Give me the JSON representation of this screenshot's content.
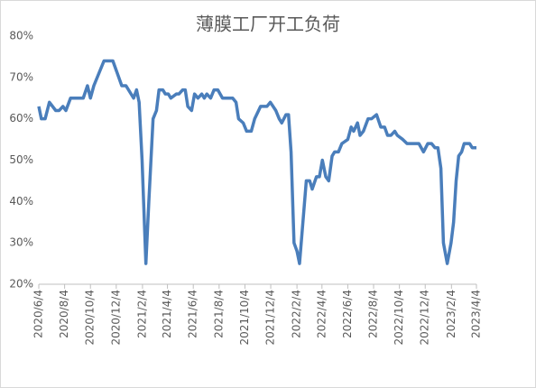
{
  "chart_data": {
    "type": "line",
    "title": "薄膜工厂开工负荷",
    "color": "#4a7ebb",
    "x": [
      "2020-06-04",
      "2020-06-10",
      "2020-06-19",
      "2020-06-29",
      "2020-07-14",
      "2020-07-22",
      "2020-07-31",
      "2020-08-07",
      "2020-08-18",
      "2020-09-17",
      "2020-09-27",
      "2020-10-04",
      "2020-10-12",
      "2020-11-05",
      "2020-11-26",
      "2020-12-17",
      "2020-12-27",
      "2021-01-14",
      "2021-01-21",
      "2021-01-27",
      "2021-02-03",
      "2021-02-12",
      "2021-02-19",
      "2021-03-01",
      "2021-03-09",
      "2021-03-15",
      "2021-03-24",
      "2021-03-30",
      "2021-04-06",
      "2021-04-12",
      "2021-04-25",
      "2021-05-01",
      "2021-05-10",
      "2021-05-16",
      "2021-05-22",
      "2021-05-31",
      "2021-06-07",
      "2021-06-15",
      "2021-06-24",
      "2021-06-30",
      "2021-07-06",
      "2021-07-15",
      "2021-07-23",
      "2021-08-01",
      "2021-08-12",
      "2021-09-05",
      "2021-09-13",
      "2021-09-19",
      "2021-09-30",
      "2021-10-08",
      "2021-10-19",
      "2021-10-27",
      "2021-11-10",
      "2021-11-25",
      "2021-12-03",
      "2021-12-16",
      "2021-12-24",
      "2021-12-30",
      "2022-01-09",
      "2022-01-15",
      "2022-01-21",
      "2022-01-28",
      "2022-02-04",
      "2022-02-10",
      "2022-02-18",
      "2022-02-26",
      "2022-03-06",
      "2022-03-12",
      "2022-03-22",
      "2022-03-29",
      "2022-04-05",
      "2022-04-13",
      "2022-04-20",
      "2022-04-28",
      "2022-05-04",
      "2022-05-13",
      "2022-05-21",
      "2022-06-04",
      "2022-06-12",
      "2022-06-18",
      "2022-06-27",
      "2022-07-03",
      "2022-07-11",
      "2022-07-22",
      "2022-07-30",
      "2022-08-11",
      "2022-08-21",
      "2022-08-30",
      "2022-09-06",
      "2022-09-14",
      "2022-09-23",
      "2022-09-29",
      "2022-10-12",
      "2022-10-22",
      "2022-11-11",
      "2022-11-19",
      "2022-11-30",
      "2022-12-10",
      "2022-12-19",
      "2022-12-27",
      "2023-01-03",
      "2023-01-10",
      "2023-01-16",
      "2023-01-25",
      "2023-02-03",
      "2023-02-09",
      "2023-02-15",
      "2023-02-21",
      "2023-02-28",
      "2023-03-06",
      "2023-03-19",
      "2023-03-25",
      "2023-04-04"
    ],
    "values": [
      63,
      60,
      60,
      64,
      62,
      62,
      63,
      62,
      65,
      65,
      68,
      65,
      68,
      74,
      74,
      68,
      68,
      65,
      67,
      64,
      50,
      25,
      40,
      60,
      62,
      67,
      67,
      66,
      66,
      65,
      66,
      66,
      67,
      67,
      63,
      62,
      66,
      65,
      66,
      65,
      66,
      65,
      67,
      67,
      65,
      65,
      64,
      60,
      59,
      57,
      57,
      60,
      63,
      63,
      64,
      62,
      60,
      59,
      61,
      61,
      52,
      30,
      28,
      25,
      35,
      45,
      45,
      43,
      46,
      46,
      50,
      46,
      45,
      51,
      52,
      52,
      54,
      55,
      58,
      57,
      59,
      56,
      57,
      60,
      60,
      61,
      58,
      58,
      56,
      56,
      57,
      56,
      55,
      54,
      54,
      54,
      52,
      54,
      54,
      53,
      53,
      48,
      30,
      25,
      30,
      35,
      45,
      51,
      52,
      54,
      54,
      53,
      53
    ],
    "xlim": [
      "2020-06-04",
      "2023-04-04"
    ],
    "xticks": [
      {
        "value": "2020-06-04",
        "label": "2020/6/4"
      },
      {
        "value": "2020-08-04",
        "label": "2020/8/4"
      },
      {
        "value": "2020-10-04",
        "label": "2020/10/4"
      },
      {
        "value": "2020-12-04",
        "label": "2020/12/4"
      },
      {
        "value": "2021-02-04",
        "label": "2021/2/4"
      },
      {
        "value": "2021-04-04",
        "label": "2021/4/4"
      },
      {
        "value": "2021-06-04",
        "label": "2021/6/4"
      },
      {
        "value": "2021-08-04",
        "label": "2021/8/4"
      },
      {
        "value": "2021-10-04",
        "label": "2021/10/4"
      },
      {
        "value": "2021-12-04",
        "label": "2021/12/4"
      },
      {
        "value": "2022-02-04",
        "label": "2022/2/4"
      },
      {
        "value": "2022-04-04",
        "label": "2022/4/4"
      },
      {
        "value": "2022-06-04",
        "label": "2022/6/4"
      },
      {
        "value": "2022-08-04",
        "label": "2022/8/4"
      },
      {
        "value": "2022-10-04",
        "label": "2022/10/4"
      },
      {
        "value": "2022-12-04",
        "label": "2022/12/4"
      },
      {
        "value": "2023-02-04",
        "label": "2023/2/4"
      },
      {
        "value": "2023-04-04",
        "label": "2023/4/4"
      }
    ],
    "ylim": [
      20,
      80
    ],
    "yticks": [
      {
        "value": 20,
        "label": "20%"
      },
      {
        "value": 30,
        "label": "30%"
      },
      {
        "value": 40,
        "label": "40%"
      },
      {
        "value": 50,
        "label": "50%"
      },
      {
        "value": 60,
        "label": "60%"
      },
      {
        "value": 70,
        "label": "70%"
      },
      {
        "value": 80,
        "label": "80%"
      }
    ]
  }
}
